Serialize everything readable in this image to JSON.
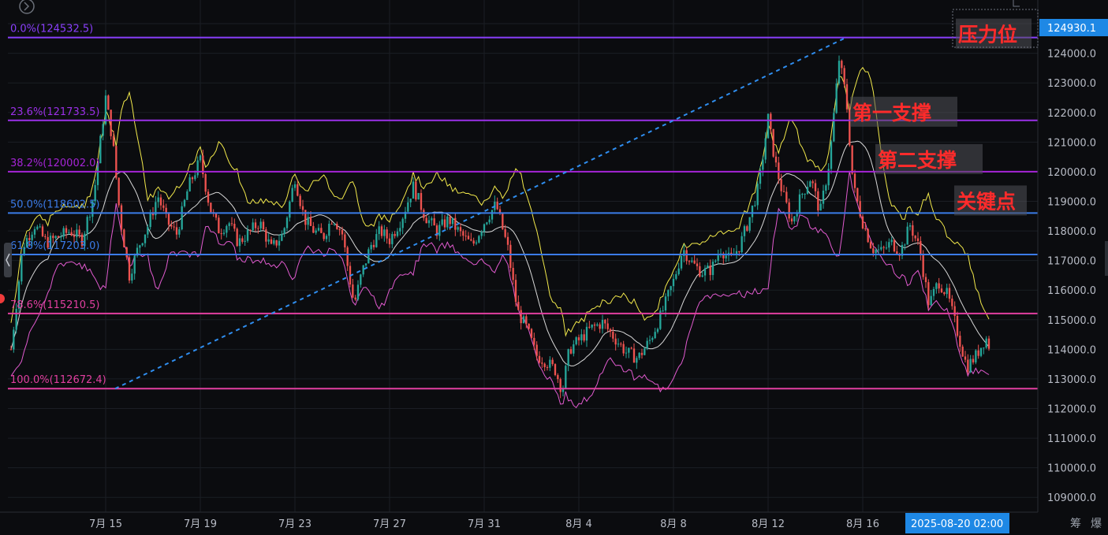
{
  "chart_data": {
    "type": "candlestick",
    "y_axis": {
      "ticks": [
        125000,
        124000,
        123000,
        122000,
        121000,
        120000,
        119000,
        118000,
        117000,
        116000,
        115000,
        114000,
        113000,
        112000,
        111000,
        110000,
        109000
      ],
      "tick_labels": [
        "",
        "124000.0",
        "123000.0",
        "122000.0",
        "121000.0",
        "120000.0",
        "119000.0",
        "118000.0",
        "117000.0",
        "116000.0",
        "115000.0",
        "114000.0",
        "113000.0",
        "112000.0",
        "111000.0",
        "110000.0",
        "109000.0"
      ],
      "range": [
        108500,
        125800
      ]
    },
    "x_axis": {
      "ticks": [
        "7月 15",
        "7月 19",
        "7月 23",
        "7月 27",
        "7月 31",
        "8月 4",
        "8月 8",
        "8月 12",
        "8月 16"
      ],
      "tick_positions_days": [
        4,
        8,
        12,
        16,
        20,
        24,
        28,
        32,
        36
      ],
      "range_days": [
        0,
        42
      ]
    },
    "current_price": {
      "label": "124930.1",
      "value": 124930.1
    },
    "crosshair_time": "2025-08-20 02:00",
    "fib_levels": [
      {
        "label": "0.0%(124532.5)",
        "value": 124532.5,
        "color": "#8a3ffc"
      },
      {
        "label": "23.6%(121733.5)",
        "value": 121733.5,
        "color": "#9b30e8"
      },
      {
        "label": "38.2%(120002.0)",
        "value": 120002.0,
        "color": "#a524d6"
      },
      {
        "label": "50.0%(118602.5)",
        "value": 118602.5,
        "color": "#3b7be8"
      },
      {
        "label": "61.8%(117203.0)",
        "value": 117203.0,
        "color": "#3b7be8"
      },
      {
        "label": "78.6%(115210.5)",
        "value": 115210.5,
        "color": "#e23fa0"
      },
      {
        "label": "100.0%(112672.4)",
        "value": 112672.4,
        "color": "#e23fa0"
      }
    ],
    "trend_line": {
      "from": {
        "day": 4.4,
        "price": 112672.4
      },
      "to": {
        "day": 35.3,
        "price": 124532.5
      }
    },
    "annotations": [
      {
        "text": "压力位",
        "level": 124532.5
      },
      {
        "text": "第一支撑",
        "level": 121733.5
      },
      {
        "text": "第二支撑",
        "level": 120002.0
      },
      {
        "text": "关键点",
        "level": 118602.5
      }
    ],
    "price_path": [
      [
        0.0,
        114000
      ],
      [
        0.5,
        117500
      ],
      [
        1.0,
        118200
      ],
      [
        1.5,
        117600
      ],
      [
        2.0,
        117800
      ],
      [
        2.5,
        118000
      ],
      [
        3.0,
        117700
      ],
      [
        3.5,
        119200
      ],
      [
        4.0,
        122500
      ],
      [
        4.3,
        121000
      ],
      [
        4.6,
        118500
      ],
      [
        5.0,
        116500
      ],
      [
        5.4,
        117500
      ],
      [
        5.8,
        118200
      ],
      [
        6.2,
        119200
      ],
      [
        6.6,
        118300
      ],
      [
        7.0,
        117900
      ],
      [
        7.5,
        119500
      ],
      [
        8.0,
        120400
      ],
      [
        8.4,
        118800
      ],
      [
        8.8,
        118000
      ],
      [
        9.2,
        118300
      ],
      [
        9.6,
        117600
      ],
      [
        10.0,
        117900
      ],
      [
        10.5,
        118300
      ],
      [
        11.0,
        117400
      ],
      [
        11.5,
        117900
      ],
      [
        12.0,
        119800
      ],
      [
        12.4,
        118400
      ],
      [
        12.8,
        118000
      ],
      [
        13.2,
        117800
      ],
      [
        13.6,
        118500
      ],
      [
        14.0,
        117900
      ],
      [
        14.5,
        115500
      ],
      [
        14.8,
        116500
      ],
      [
        15.2,
        117500
      ],
      [
        15.6,
        118000
      ],
      [
        16.0,
        117700
      ],
      [
        16.5,
        118400
      ],
      [
        17.0,
        119500
      ],
      [
        17.5,
        118500
      ],
      [
        18.0,
        118000
      ],
      [
        18.5,
        118400
      ],
      [
        19.0,
        117900
      ],
      [
        19.5,
        117500
      ],
      [
        20.0,
        118300
      ],
      [
        20.5,
        118900
      ],
      [
        21.0,
        117400
      ],
      [
        21.4,
        115300
      ],
      [
        21.8,
        114700
      ],
      [
        22.2,
        113800
      ],
      [
        22.6,
        113600
      ],
      [
        23.0,
        113300
      ],
      [
        23.3,
        112600
      ],
      [
        23.6,
        114000
      ],
      [
        24.0,
        114300
      ],
      [
        24.5,
        114700
      ],
      [
        25.0,
        114900
      ],
      [
        25.5,
        114400
      ],
      [
        26.0,
        113900
      ],
      [
        26.5,
        113700
      ],
      [
        27.0,
        114300
      ],
      [
        27.5,
        115200
      ],
      [
        28.0,
        116300
      ],
      [
        28.4,
        117400
      ],
      [
        28.8,
        116900
      ],
      [
        29.2,
        116600
      ],
      [
        29.6,
        116700
      ],
      [
        30.0,
        117400
      ],
      [
        30.4,
        117000
      ],
      [
        30.8,
        117500
      ],
      [
        31.2,
        118400
      ],
      [
        31.6,
        119500
      ],
      [
        32.0,
        121800
      ],
      [
        32.3,
        120300
      ],
      [
        32.6,
        119300
      ],
      [
        33.0,
        118300
      ],
      [
        33.4,
        119200
      ],
      [
        33.8,
        119800
      ],
      [
        34.2,
        118600
      ],
      [
        34.6,
        120400
      ],
      [
        35.0,
        123800
      ],
      [
        35.3,
        122500
      ],
      [
        35.6,
        119500
      ],
      [
        36.0,
        118300
      ],
      [
        36.4,
        117400
      ],
      [
        36.8,
        117300
      ],
      [
        37.2,
        117600
      ],
      [
        37.6,
        117300
      ],
      [
        38.0,
        118200
      ],
      [
        38.4,
        117400
      ],
      [
        38.8,
        115500
      ],
      [
        39.2,
        116300
      ],
      [
        39.6,
        115800
      ],
      [
        40.0,
        114600
      ],
      [
        40.4,
        113400
      ],
      [
        40.8,
        113800
      ],
      [
        41.2,
        114400
      ],
      [
        41.4,
        114000
      ]
    ],
    "moving_averages": [
      {
        "color": "#f2e94b",
        "offset": 900
      },
      {
        "color": "#d8d8d8",
        "offset": 0
      },
      {
        "color": "#e25bd0",
        "offset": -900
      }
    ],
    "colors": {
      "up": "#26a69a",
      "down": "#ef5350"
    }
  },
  "side_buttons": {
    "bottom_right_1": "筹",
    "bottom_right_2": "爆"
  }
}
